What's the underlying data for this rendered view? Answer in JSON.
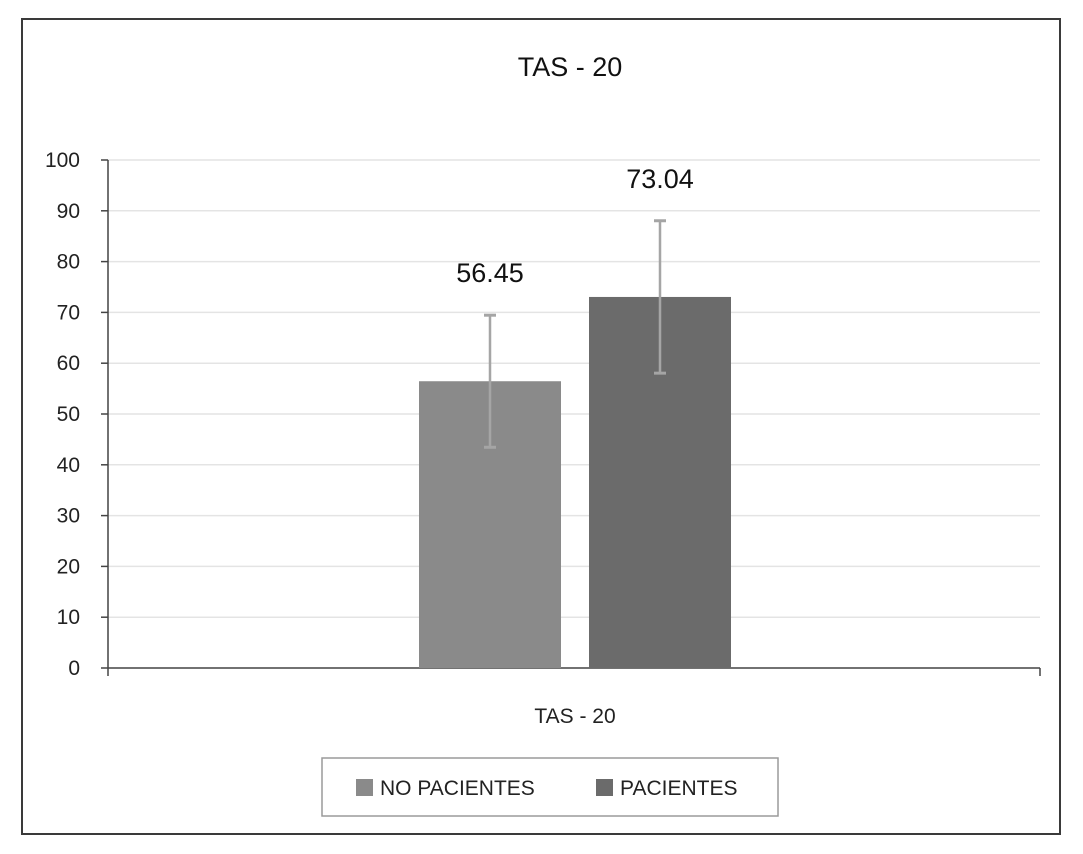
{
  "chart_data": {
    "type": "bar",
    "title": "TAS - 20",
    "categories": [
      "TAS - 20"
    ],
    "series": [
      {
        "name": "NO PACIENTES",
        "values": [
          56.45
        ],
        "error": [
          13.0
        ],
        "color": "#8a8a8a",
        "label": "56.45"
      },
      {
        "name": "PACIENTES",
        "values": [
          73.04
        ],
        "error": [
          15.0
        ],
        "color": "#6b6b6b",
        "label": "73.04"
      }
    ],
    "ylim": [
      0,
      100
    ],
    "yticks": [
      "0",
      "10",
      "20",
      "30",
      "40",
      "50",
      "60",
      "70",
      "80",
      "90",
      "100"
    ],
    "grid": true,
    "legend": "bottom"
  }
}
